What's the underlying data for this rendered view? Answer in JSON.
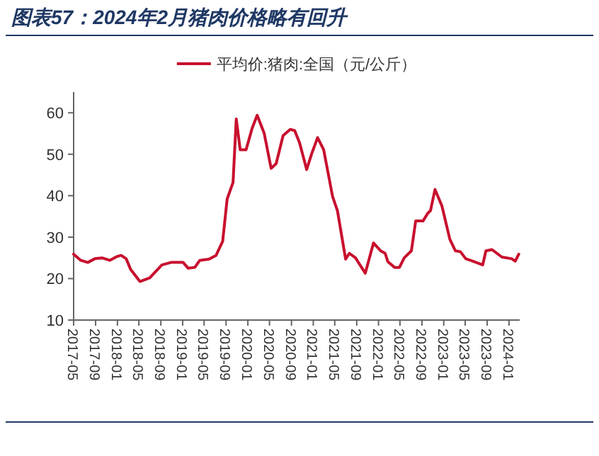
{
  "chart_data": {
    "type": "line",
    "title": "图表57：2024年2月猪肉价格略有回升",
    "x": [
      "2017-05-01",
      "2017-06-10",
      "2017-07-19",
      "2017-08-28",
      "2017-10-07",
      "2017-11-19",
      "2017-12-28",
      "2018-01-22",
      "2018-02-19",
      "2018-03-16",
      "2018-05-07",
      "2018-07-01",
      "2018-09-07",
      "2018-10-28",
      "2019-01-04",
      "2019-02-01",
      "2019-03-10",
      "2019-04-07",
      "2019-05-28",
      "2019-07-07",
      "2019-08-13",
      "2019-09-07",
      "2019-10-10",
      "2019-10-28",
      "2019-11-19",
      "2019-12-22",
      "2020-01-25",
      "2020-02-22",
      "2020-04-01",
      "2020-05-10",
      "2020-06-07",
      "2020-07-16",
      "2020-08-25",
      "2020-09-19",
      "2020-10-16",
      "2020-11-25",
      "2020-12-22",
      "2021-01-25",
      "2021-02-28",
      "2021-04-19",
      "2021-05-16",
      "2021-07-01",
      "2021-07-22",
      "2021-08-25",
      "2021-10-19",
      "2021-12-04",
      "2022-01-13",
      "2022-02-07",
      "2022-02-22",
      "2022-04-01",
      "2022-04-28",
      "2022-05-25",
      "2022-07-04",
      "2022-07-28",
      "2022-09-07",
      "2022-10-04",
      "2022-10-19",
      "2022-11-13",
      "2022-12-22",
      "2023-02-04",
      "2023-03-07",
      "2023-04-04",
      "2023-05-04",
      "2023-06-13",
      "2023-08-07",
      "2023-08-25",
      "2023-09-28",
      "2023-11-22",
      "2024-01-16",
      "2024-02-05",
      "2024-02-25"
    ],
    "series": [
      {
        "name": "平均价:猪肉:全国（元/公斤）",
        "color": "#c8102e",
        "values": [
          25.9,
          24.4,
          23.9,
          24.8,
          25.0,
          24.4,
          25.3,
          25.6,
          24.8,
          22.2,
          19.3,
          20.2,
          23.3,
          23.9,
          23.9,
          22.5,
          22.7,
          24.4,
          24.7,
          25.6,
          29.0,
          39.2,
          43.2,
          58.5,
          51.1,
          51.1,
          56.3,
          59.4,
          55.1,
          46.6,
          47.7,
          54.5,
          56.0,
          55.7,
          52.8,
          46.3,
          50.0,
          54.0,
          51.1,
          39.8,
          36.4,
          24.7,
          26.1,
          25.0,
          21.3,
          28.6,
          26.7,
          26.1,
          24.1,
          22.7,
          22.7,
          25.0,
          26.7,
          33.9,
          33.9,
          35.8,
          36.4,
          41.5,
          37.5,
          29.5,
          26.7,
          26.5,
          24.8,
          24.2,
          23.3,
          26.7,
          27.0,
          25.2,
          24.8,
          24.2,
          25.9
        ]
      }
    ],
    "xlim": [
      "2017-05-01",
      "2024-03-01"
    ],
    "xticks": [
      {
        "value": "2017-05-01",
        "label": "2017-05"
      },
      {
        "value": "2017-09-01",
        "label": "2017-09"
      },
      {
        "value": "2018-01-01",
        "label": "2018-01"
      },
      {
        "value": "2018-05-01",
        "label": "2018-05"
      },
      {
        "value": "2018-09-01",
        "label": "2018-09"
      },
      {
        "value": "2019-01-01",
        "label": "2019-01"
      },
      {
        "value": "2019-05-01",
        "label": "2019-05"
      },
      {
        "value": "2019-09-01",
        "label": "2019-09"
      },
      {
        "value": "2020-01-01",
        "label": "2020-01"
      },
      {
        "value": "2020-05-01",
        "label": "2020-05"
      },
      {
        "value": "2020-09-01",
        "label": "2020-09"
      },
      {
        "value": "2021-01-01",
        "label": "2021-01"
      },
      {
        "value": "2021-05-01",
        "label": "2021-05"
      },
      {
        "value": "2021-09-01",
        "label": "2021-09"
      },
      {
        "value": "2022-01-01",
        "label": "2022-01"
      },
      {
        "value": "2022-05-01",
        "label": "2022-05"
      },
      {
        "value": "2022-09-01",
        "label": "2022-09"
      },
      {
        "value": "2023-01-01",
        "label": "2023-01"
      },
      {
        "value": "2023-05-01",
        "label": "2023-05"
      },
      {
        "value": "2023-09-01",
        "label": "2023-09"
      },
      {
        "value": "2024-01-01",
        "label": "2024-01"
      }
    ],
    "ylim": [
      10,
      65
    ],
    "yticks": [
      10,
      20,
      30,
      40,
      50,
      60
    ],
    "legend": "top",
    "grid": false
  }
}
